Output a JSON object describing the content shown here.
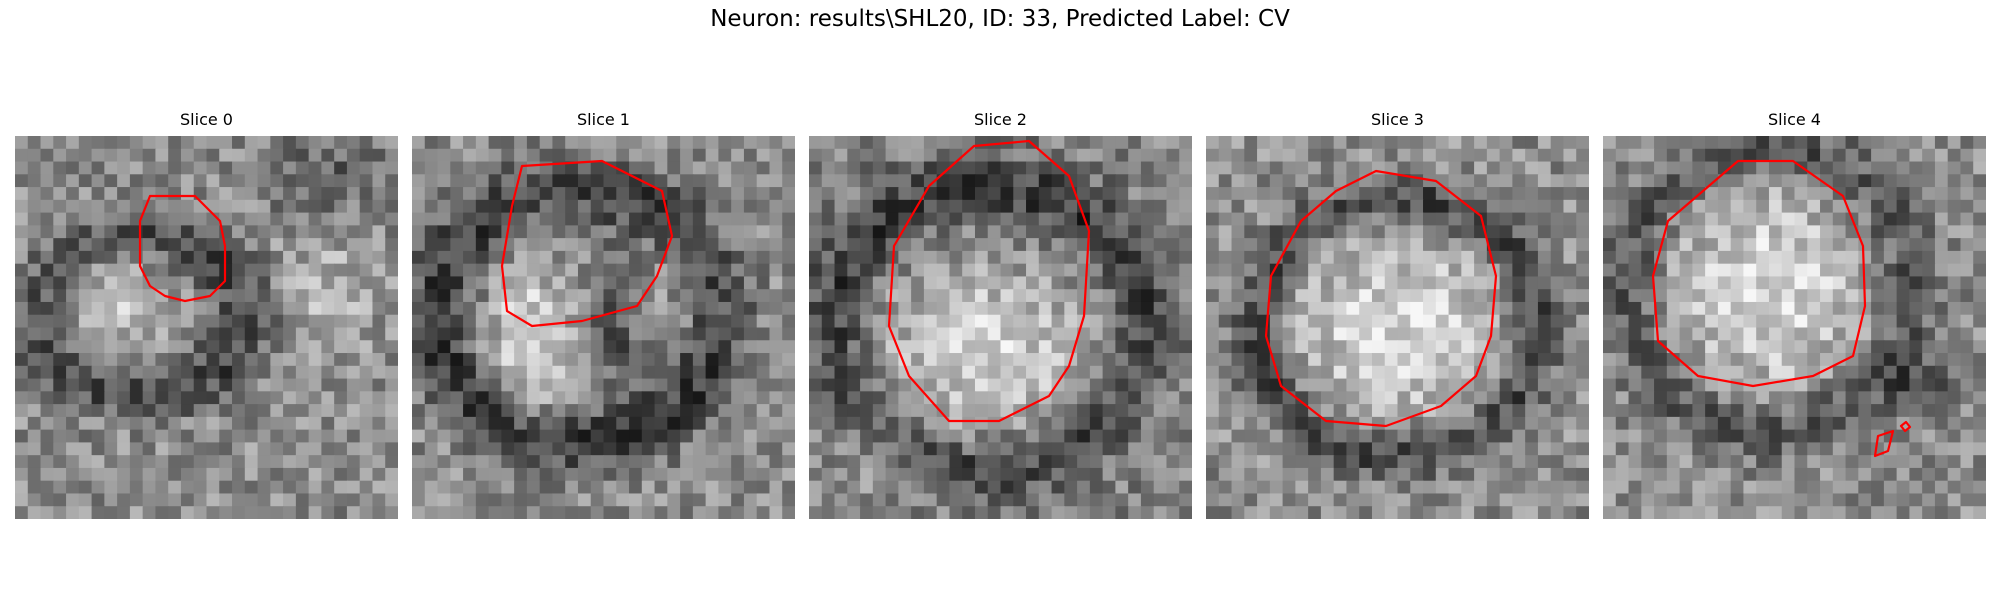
{
  "figure": {
    "title": "Neuron: results\\SHL20, ID: 33, Predicted Label: CV",
    "contour_color": "#ff0000"
  },
  "slices": [
    {
      "label": "Slice 0",
      "pattern": "small-cell-left"
    },
    {
      "label": "Slice 1",
      "pattern": "vertical-bright-left"
    },
    {
      "label": "Slice 2",
      "pattern": "large-bright-ellipse"
    },
    {
      "label": "Slice 3",
      "pattern": "bright-ellipse-dark-ring"
    },
    {
      "label": "Slice 4",
      "pattern": "bright-circle-upper"
    }
  ]
}
